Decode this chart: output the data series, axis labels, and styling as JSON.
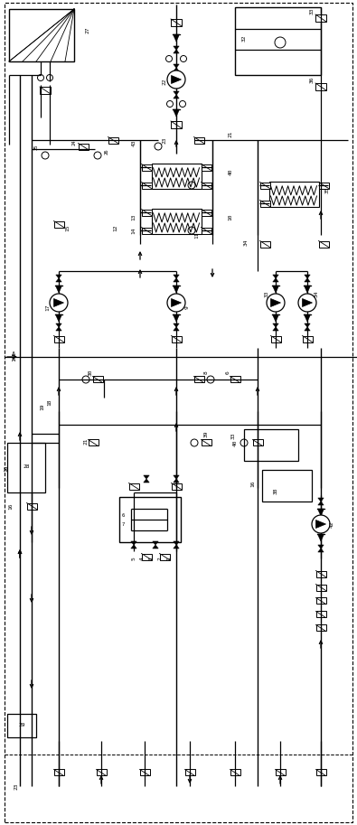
{
  "bg_color": "#ffffff",
  "line_color": "#000000",
  "fig_width": 3.95,
  "fig_height": 9.13,
  "dpi": 100
}
